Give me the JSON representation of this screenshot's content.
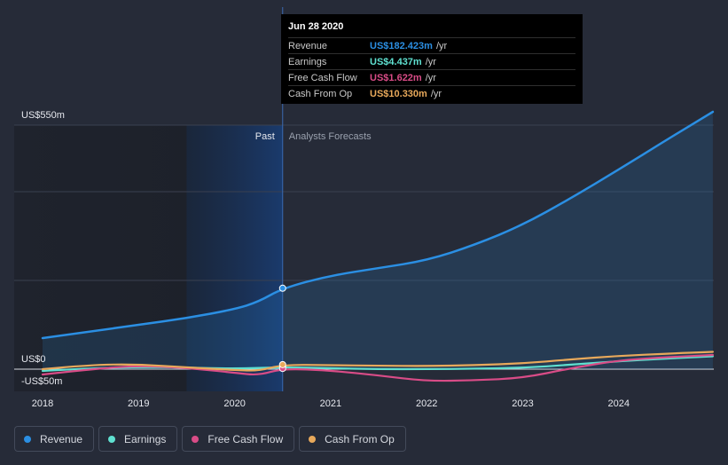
{
  "chart_data": {
    "type": "line",
    "title": "",
    "xlabel": "",
    "ylabel": "",
    "ylim": [
      -50,
      550
    ],
    "xlim": [
      2018,
      2025
    ],
    "y_tick_labels": [
      {
        "label": "US$550m",
        "value": 550
      },
      {
        "label": "US$0",
        "value": 0
      },
      {
        "label": "-US$50m",
        "value": -50
      }
    ],
    "x_ticks": [
      2018,
      2019,
      2020,
      2021,
      2022,
      2023,
      2024
    ],
    "region_labels": {
      "past": "Past",
      "forecast": "Analysts Forecasts"
    },
    "divider_x": 2020.5,
    "highlight_x": [
      2019.5,
      2020.5
    ],
    "series": [
      {
        "name": "Revenue",
        "color": "#2b8fe3",
        "fill": true,
        "points": [
          [
            2018.0,
            70
          ],
          [
            2018.5,
            85
          ],
          [
            2019.0,
            100
          ],
          [
            2019.5,
            115
          ],
          [
            2020.0,
            135
          ],
          [
            2020.25,
            152
          ],
          [
            2020.5,
            182.4
          ],
          [
            2021.0,
            211
          ],
          [
            2021.5,
            228
          ],
          [
            2022.0,
            245
          ],
          [
            2022.5,
            280
          ],
          [
            2023.0,
            325
          ],
          [
            2023.5,
            385
          ],
          [
            2024.0,
            450
          ],
          [
            2024.5,
            517
          ],
          [
            2024.98,
            580
          ]
        ]
      },
      {
        "name": "Earnings",
        "color": "#5fe0d0",
        "fill": false,
        "points": [
          [
            2018.0,
            -4
          ],
          [
            2018.5,
            2
          ],
          [
            2019.0,
            5
          ],
          [
            2019.5,
            4
          ],
          [
            2020.0,
            1
          ],
          [
            2020.5,
            4.4
          ],
          [
            2021.0,
            2
          ],
          [
            2021.5,
            0
          ],
          [
            2022.0,
            0
          ],
          [
            2022.5,
            1
          ],
          [
            2023.0,
            3
          ],
          [
            2023.5,
            10
          ],
          [
            2024.0,
            18
          ],
          [
            2024.5,
            24
          ],
          [
            2024.98,
            29
          ]
        ]
      },
      {
        "name": "Free Cash Flow",
        "color": "#d94c87",
        "fill": false,
        "points": [
          [
            2018.0,
            -12
          ],
          [
            2018.5,
            0
          ],
          [
            2019.0,
            8
          ],
          [
            2019.5,
            3
          ],
          [
            2020.0,
            -8
          ],
          [
            2020.25,
            -14
          ],
          [
            2020.5,
            1.6
          ],
          [
            2021.0,
            -3
          ],
          [
            2021.5,
            -14
          ],
          [
            2022.0,
            -27
          ],
          [
            2022.5,
            -25
          ],
          [
            2023.0,
            -20
          ],
          [
            2023.5,
            2
          ],
          [
            2024.0,
            20
          ],
          [
            2024.5,
            27
          ],
          [
            2024.98,
            32
          ]
        ]
      },
      {
        "name": "Cash From Op",
        "color": "#e8a95b",
        "fill": false,
        "points": [
          [
            2018.0,
            0
          ],
          [
            2018.5,
            10
          ],
          [
            2019.0,
            11
          ],
          [
            2019.5,
            4
          ],
          [
            2020.0,
            -2
          ],
          [
            2020.25,
            -4
          ],
          [
            2020.5,
            10.3
          ],
          [
            2021.0,
            9
          ],
          [
            2021.5,
            8
          ],
          [
            2022.0,
            7
          ],
          [
            2022.5,
            9
          ],
          [
            2023.0,
            13
          ],
          [
            2023.5,
            22
          ],
          [
            2024.0,
            30
          ],
          [
            2024.5,
            35
          ],
          [
            2024.98,
            39
          ]
        ]
      }
    ]
  },
  "tooltip": {
    "date": "Jun 28 2020",
    "rows": [
      {
        "label": "Revenue",
        "value": "US$182.423m",
        "unit": "/yr",
        "color": "#2b8fe3"
      },
      {
        "label": "Earnings",
        "value": "US$4.437m",
        "unit": "/yr",
        "color": "#5fe0d0"
      },
      {
        "label": "Free Cash Flow",
        "value": "US$1.622m",
        "unit": "/yr",
        "color": "#d94c87"
      },
      {
        "label": "Cash From Op",
        "value": "US$10.330m",
        "unit": "/yr",
        "color": "#e8a95b"
      }
    ]
  },
  "legend": [
    {
      "label": "Revenue",
      "color": "#2b8fe3"
    },
    {
      "label": "Earnings",
      "color": "#5fe0d0"
    },
    {
      "label": "Free Cash Flow",
      "color": "#d94c87"
    },
    {
      "label": "Cash From Op",
      "color": "#e8a95b"
    }
  ]
}
